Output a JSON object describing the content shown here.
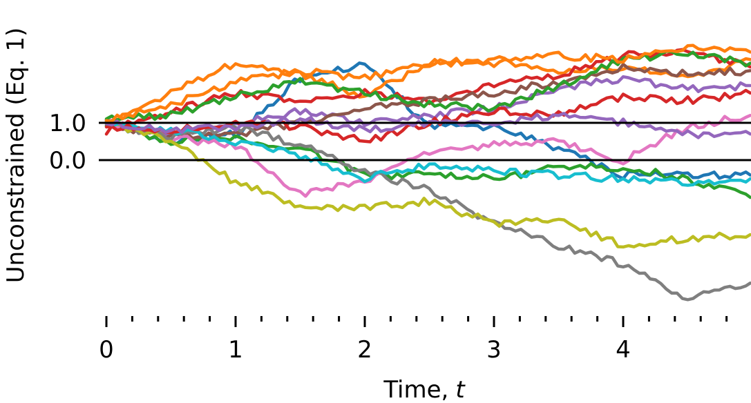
{
  "chart_data": {
    "type": "line",
    "title": "",
    "xlabel": "Time,",
    "xlabel_var": "t",
    "ylabel": "Unconstrained (Eq. 1)",
    "xlim": [
      0,
      4.99
    ],
    "ylim": [
      -3.9,
      3.0
    ],
    "x_major_ticks": [
      0,
      1,
      2,
      3,
      4
    ],
    "x_major_tick_labels": [
      "0",
      "1",
      "2",
      "3",
      "4"
    ],
    "x_minor_ticks": [
      0.2,
      0.4,
      0.6,
      0.8,
      1.2,
      1.4,
      1.6,
      1.8,
      2.2,
      2.4,
      2.6,
      2.8,
      3.2,
      3.4,
      3.6,
      3.8,
      4.2,
      4.4,
      4.6,
      4.8
    ],
    "y_ticks": [
      1.0,
      0.0
    ],
    "y_tick_labels": [
      "1.0",
      "0.0"
    ],
    "reference_lines_y": [
      1.0,
      0.0
    ],
    "grid": false,
    "legend": "none",
    "series": [
      {
        "color": "#1f77b4",
        "x": [
          0,
          0.5,
          1.0,
          1.5,
          2.0,
          2.5,
          3.0,
          3.5,
          4.0,
          4.5,
          4.99
        ],
        "y": [
          1.0,
          0.5,
          0.7,
          2.2,
          2.6,
          0.9,
          0.9,
          0.3,
          -0.4,
          -0.4,
          -0.4
        ]
      },
      {
        "color": "#ff7f0e",
        "x": [
          0,
          0.5,
          1.0,
          1.5,
          2.0,
          2.5,
          3.0,
          3.5,
          4.0,
          4.5,
          4.99
        ],
        "y": [
          1.0,
          1.8,
          2.6,
          2.3,
          1.7,
          2.6,
          2.7,
          2.4,
          2.5,
          2.2,
          2.7
        ]
      },
      {
        "color": "#2ca02c",
        "x": [
          0,
          0.5,
          1.0,
          1.5,
          2.0,
          2.5,
          3.0,
          3.5,
          4.0,
          4.5,
          4.99
        ],
        "y": [
          1.0,
          0.5,
          0.6,
          0.3,
          -0.4,
          -0.4,
          -0.5,
          -0.2,
          -0.2,
          -0.5,
          -1.0
        ]
      },
      {
        "color": "#d62728",
        "x": [
          0,
          0.5,
          1.0,
          1.5,
          2.0,
          2.5,
          3.0,
          3.5,
          4.0,
          4.5,
          4.99
        ],
        "y": [
          0.8,
          1.3,
          1.8,
          1.6,
          1.8,
          1.6,
          2.0,
          2.3,
          2.8,
          2.9,
          2.5
        ]
      },
      {
        "color": "#9467bd",
        "x": [
          0,
          0.5,
          1.0,
          1.5,
          2.0,
          2.5,
          3.0,
          3.5,
          4.0,
          4.5,
          4.99
        ],
        "y": [
          1.0,
          0.7,
          1.0,
          1.3,
          1.0,
          1.2,
          1.4,
          1.9,
          2.2,
          1.9,
          2.0
        ]
      },
      {
        "color": "#8c564b",
        "x": [
          0,
          0.5,
          1.0,
          1.5,
          2.0,
          2.5,
          3.0,
          3.5,
          4.0,
          4.5,
          4.99
        ],
        "y": [
          1.0,
          0.6,
          0.7,
          1.0,
          1.4,
          1.6,
          1.8,
          2.1,
          2.5,
          2.3,
          2.4
        ]
      },
      {
        "color": "#e377c2",
        "x": [
          0,
          0.5,
          1.0,
          1.5,
          2.0,
          2.5,
          3.0,
          3.5,
          4.0,
          4.5,
          4.99
        ],
        "y": [
          1.0,
          0.6,
          0.4,
          -0.9,
          -0.6,
          0.2,
          0.4,
          0.5,
          0.0,
          0.9,
          1.2
        ]
      },
      {
        "color": "#7f7f7f",
        "x": [
          0,
          0.5,
          1.0,
          1.5,
          2.0,
          2.5,
          3.0,
          3.5,
          4.0,
          4.5,
          4.99
        ],
        "y": [
          1.0,
          0.6,
          0.9,
          0.4,
          -0.3,
          -0.8,
          -1.7,
          -2.3,
          -2.8,
          -3.7,
          -3.3
        ]
      },
      {
        "color": "#bcbd22",
        "x": [
          0,
          0.5,
          1.0,
          1.5,
          2.0,
          2.5,
          3.0,
          3.5,
          4.0,
          4.5,
          4.99
        ],
        "y": [
          1.0,
          0.5,
          -0.6,
          -1.2,
          -1.3,
          -1.1,
          -1.7,
          -1.6,
          -2.3,
          -2.1,
          -2.0
        ]
      },
      {
        "color": "#17becf",
        "x": [
          0,
          0.5,
          1.0,
          1.5,
          2.0,
          2.5,
          3.0,
          3.5,
          4.0,
          4.5,
          4.99
        ],
        "y": [
          1.0,
          0.8,
          0.5,
          0.1,
          -0.5,
          -0.1,
          -0.3,
          -0.4,
          -0.5,
          -0.6,
          -0.5
        ]
      },
      {
        "color": "#2ca02c",
        "x": [
          0,
          0.5,
          1.0,
          1.5,
          2.0,
          2.5,
          3.0,
          3.5,
          4.0,
          4.5,
          4.99
        ],
        "y": [
          1.1,
          1.2,
          1.7,
          2.1,
          1.8,
          1.5,
          1.4,
          2.0,
          2.7,
          2.9,
          2.6
        ]
      },
      {
        "color": "#d62728",
        "x": [
          0,
          0.5,
          1.0,
          1.5,
          2.0,
          2.5,
          3.0,
          3.5,
          4.0,
          4.5,
          4.99
        ],
        "y": [
          0.9,
          0.8,
          1.0,
          0.9,
          0.5,
          1.0,
          1.3,
          1.2,
          1.7,
          1.6,
          1.8
        ]
      },
      {
        "color": "#9467bd",
        "x": [
          0,
          0.5,
          1.0,
          1.5,
          2.0,
          2.5,
          3.0,
          3.5,
          4.0,
          4.5,
          4.99
        ],
        "y": [
          1.0,
          0.8,
          0.9,
          1.1,
          0.8,
          1.0,
          1.0,
          1.2,
          1.0,
          0.7,
          0.7
        ]
      },
      {
        "color": "#ff7f0e",
        "x": [
          0,
          0.5,
          1.0,
          1.5,
          2.0,
          2.5,
          3.0,
          3.5,
          4.0,
          4.5,
          4.99
        ],
        "y": [
          1.1,
          1.5,
          2.1,
          2.4,
          2.2,
          2.6,
          2.6,
          2.8,
          2.7,
          3.0,
          2.9
        ]
      }
    ]
  }
}
